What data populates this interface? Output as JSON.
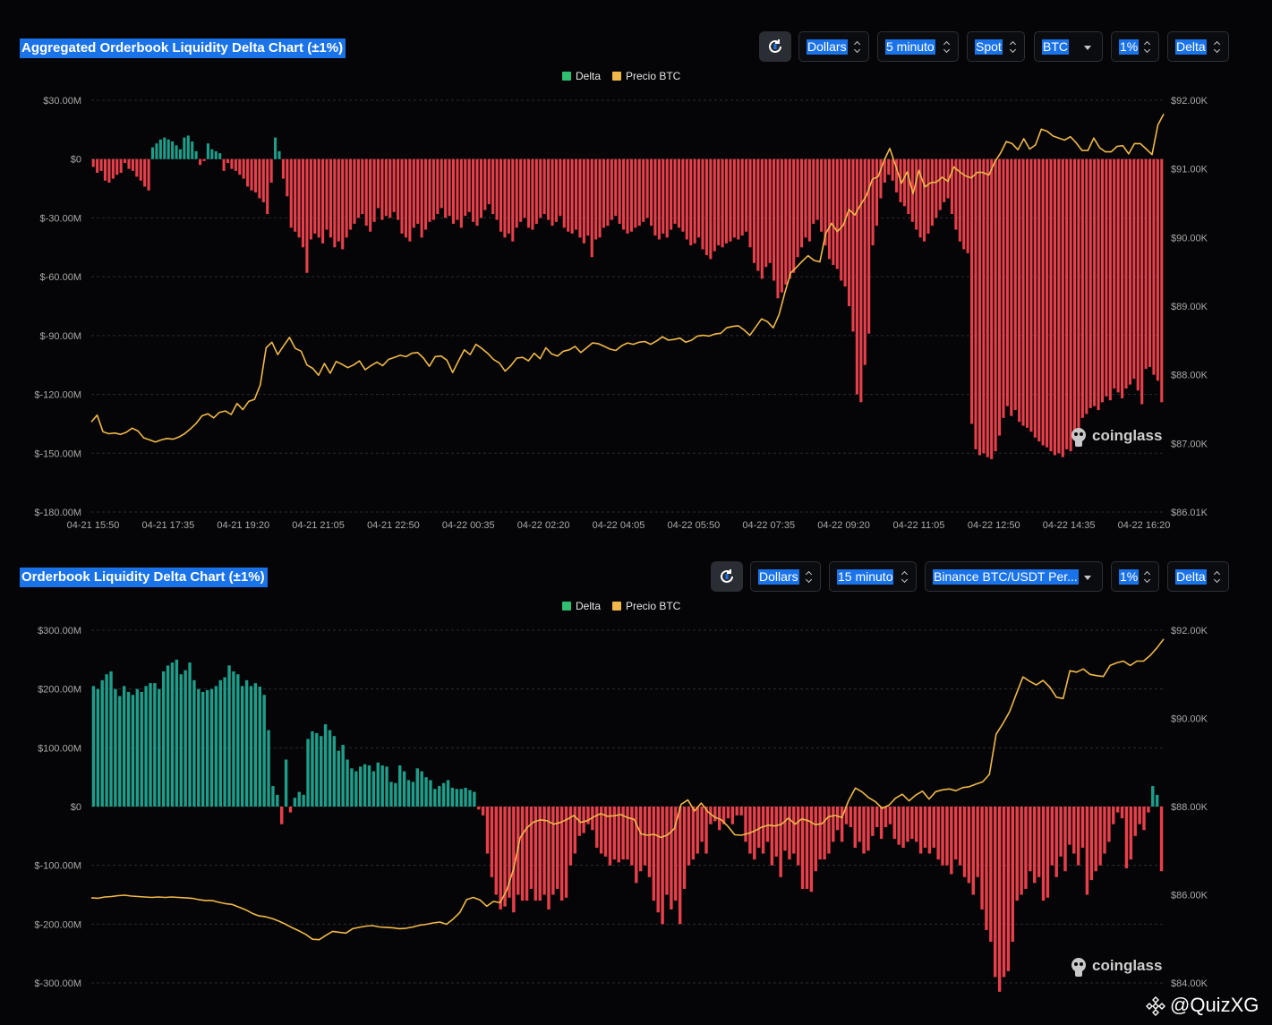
{
  "top_panel": {
    "title": "Aggregated Orderbook Liquidity Delta Chart (±1%)",
    "controls": {
      "unit": "Dollars",
      "interval": "5 minuto",
      "market": "Spot",
      "coin": "BTC",
      "range": "1%",
      "mode": "Delta"
    },
    "watermark": "coinglass"
  },
  "bottom_panel": {
    "title": "Orderbook Liquidity Delta Chart (±1%)",
    "controls": {
      "unit": "Dollars",
      "interval": "15 minuto",
      "pair": "Binance BTC/USDT Per...",
      "range": "1%",
      "mode": "Delta"
    },
    "watermark": "coinglass"
  },
  "footer": {
    "credit": "@QuizXG"
  },
  "colors": {
    "positive": "#1e9e8a",
    "negative": "#e8404a",
    "price": "#f0b84a",
    "background": "#050507"
  },
  "chart_data": [
    {
      "type": "bar",
      "title": "Aggregated Orderbook Liquidity Delta Chart (±1%)",
      "legend": [
        "Delta",
        "Precio BTC"
      ],
      "legend_position": "top-center",
      "grid": true,
      "x_ticks": [
        "04-21 15:50",
        "04-21 17:35",
        "04-21 19:20",
        "04-21 21:05",
        "04-21 22:50",
        "04-22 00:35",
        "04-22 02:20",
        "04-22 04:05",
        "04-22 05:50",
        "04-22 07:35",
        "04-22 09:20",
        "04-22 11:05",
        "04-22 12:50",
        "04-22 14:35",
        "04-22 16:20"
      ],
      "y_left": {
        "ticks": [
          "$30.00M",
          "$0",
          "$-30.00M",
          "$-60.00M",
          "$-90.00M",
          "$-120.00M",
          "$-150.00M",
          "$-180.00M"
        ],
        "range": [
          -180,
          30
        ],
        "unit": "M USD"
      },
      "y_right": {
        "ticks": [
          "$92.00K",
          "$91.00K",
          "$90.00K",
          "$89.00K",
          "$88.00K",
          "$87.00K",
          "$86.01K"
        ],
        "range": [
          86010,
          92000
        ]
      },
      "series": [
        {
          "name": "Delta",
          "kind": "bar",
          "values": [
            -4,
            -7,
            -6,
            -11,
            -12,
            -10,
            -8,
            -7,
            -2,
            -5,
            -6,
            -9,
            -11,
            -14,
            -16,
            6,
            8,
            10,
            11,
            10,
            9,
            7,
            5,
            11,
            12,
            9,
            4,
            -3,
            -1,
            8,
            5,
            4,
            3,
            -6,
            -2,
            -5,
            -6,
            -8,
            -10,
            -14,
            -16,
            -17,
            -20,
            -22,
            -28,
            -12,
            11,
            4,
            -10,
            -19,
            -35,
            -37,
            -40,
            -45,
            -58,
            -41,
            -38,
            -40,
            -43,
            -36,
            -40,
            -45,
            -42,
            -46,
            -40,
            -36,
            -33,
            -30,
            -28,
            -34,
            -37,
            -32,
            -25,
            -31,
            -29,
            -30,
            -27,
            -31,
            -38,
            -40,
            -42,
            -35,
            -33,
            -40,
            -36,
            -32,
            -31,
            -28,
            -25,
            -30,
            -29,
            -33,
            -31,
            -35,
            -29,
            -27,
            -32,
            -34,
            -30,
            -26,
            -23,
            -28,
            -31,
            -37,
            -40,
            -38,
            -42,
            -35,
            -32,
            -30,
            -35,
            -36,
            -33,
            -30,
            -28,
            -31,
            -34,
            -32,
            -29,
            -35,
            -37,
            -38,
            -36,
            -40,
            -43,
            -39,
            -50,
            -41,
            -40,
            -35,
            -34,
            -31,
            -29,
            -33,
            -36,
            -38,
            -37,
            -35,
            -34,
            -32,
            -30,
            -34,
            -39,
            -41,
            -38,
            -40,
            -36,
            -33,
            -35,
            -37,
            -41,
            -44,
            -43,
            -40,
            -46,
            -49,
            -51,
            -47,
            -44,
            -45,
            -43,
            -42,
            -40,
            -41,
            -39,
            -37,
            -45,
            -53,
            -57,
            -61,
            -55,
            -53,
            -62,
            -71,
            -68,
            -64,
            -61,
            -58,
            -50,
            -45,
            -40,
            -42,
            -33,
            -31,
            -37,
            -44,
            -51,
            -54,
            -56,
            -62,
            -65,
            -75,
            -88,
            -120,
            -124,
            -105,
            -89,
            -44,
            -34,
            -20,
            -12,
            -8,
            -11,
            -17,
            -22,
            -24,
            -28,
            -32,
            -36,
            -40,
            -42,
            -38,
            -34,
            -30,
            -26,
            -22,
            -20,
            -28,
            -36,
            -42,
            -46,
            -48,
            -135,
            -148,
            -151,
            -150,
            -152,
            -153,
            -149,
            -141,
            -132,
            -126,
            -131,
            -128,
            -134,
            -136,
            -137,
            -139,
            -142,
            -144,
            -146,
            -147,
            -149,
            -151,
            -150,
            -152,
            -148,
            -149,
            -142,
            -138,
            -132,
            -130,
            -127,
            -126,
            -128,
            -124,
            -121,
            -123,
            -117,
            -119,
            -122,
            -117,
            -115,
            -112,
            -118,
            -125,
            -107,
            -106,
            -110,
            -113,
            -124
          ],
          "color": "#1e9e8a / #e8404a"
        },
        {
          "name": "Precio BTC",
          "kind": "line",
          "values": [
            87320,
            87420,
            87180,
            87150,
            87160,
            87140,
            87170,
            87230,
            87190,
            87090,
            87060,
            87030,
            87060,
            87080,
            87070,
            87100,
            87150,
            87220,
            87300,
            87410,
            87440,
            87380,
            87460,
            87480,
            87430,
            87590,
            87500,
            87620,
            87650,
            87860,
            88400,
            88480,
            88300,
            88430,
            88550,
            88390,
            88350,
            88150,
            88100,
            88000,
            88170,
            88030,
            88200,
            88160,
            88110,
            88150,
            88210,
            88080,
            88140,
            88190,
            88140,
            88230,
            88260,
            88290,
            88270,
            88320,
            88330,
            88250,
            88130,
            88270,
            88280,
            88220,
            88040,
            88210,
            88370,
            88300,
            88450,
            88390,
            88320,
            88230,
            88180,
            88060,
            88140,
            88250,
            88260,
            88210,
            88320,
            88240,
            88400,
            88310,
            88280,
            88350,
            88370,
            88420,
            88330,
            88400,
            88470,
            88460,
            88420,
            88380,
            88360,
            88430,
            88470,
            88450,
            88480,
            88490,
            88450,
            88500,
            88560,
            88510,
            88520,
            88540,
            88480,
            88510,
            88570,
            88580,
            88570,
            88600,
            88610,
            88690,
            88710,
            88720,
            88660,
            88580,
            88700,
            88820,
            88780,
            88690,
            88880,
            89200,
            89490,
            89570,
            89660,
            89740,
            89670,
            89650,
            90060,
            90210,
            90090,
            90180,
            90410,
            90330,
            90480,
            90610,
            90850,
            90890,
            91120,
            91300,
            91050,
            90790,
            90960,
            90640,
            90980,
            90740,
            90800,
            90810,
            90880,
            90820,
            91030,
            90960,
            90900,
            90870,
            90950,
            90950,
            90910,
            91100,
            91230,
            91400,
            91370,
            91280,
            91440,
            91290,
            91350,
            91580,
            91550,
            91480,
            91450,
            91420,
            91470,
            91380,
            91270,
            91270,
            91450,
            91310,
            91250,
            91250,
            91330,
            91340,
            91220,
            91370,
            91370,
            91290,
            91210,
            91640,
            91800
          ]
        }
      ]
    },
    {
      "type": "bar",
      "title": "Orderbook Liquidity Delta Chart (±1%)",
      "legend": [
        "Delta",
        "Precio BTC"
      ],
      "legend_position": "top-center",
      "grid": true,
      "x_ticks": [],
      "y_left": {
        "ticks": [
          "$300.00M",
          "$200.00M",
          "$100.00M",
          "$0",
          "$-100.00M",
          "$-200.00M",
          "$-300.00M"
        ],
        "range": [
          -300,
          300
        ],
        "unit": "M USD"
      },
      "y_right": {
        "ticks": [
          "$92.00K",
          "$90.00K",
          "$88.00K",
          "$86.00K",
          "$84.00K"
        ],
        "range": [
          84000,
          92000
        ]
      },
      "series": [
        {
          "name": "Delta",
          "kind": "bar",
          "values": [
            205,
            200,
            215,
            225,
            230,
            200,
            188,
            205,
            195,
            190,
            200,
            195,
            205,
            210,
            210,
            200,
            230,
            240,
            245,
            250,
            225,
            232,
            245,
            215,
            200,
            195,
            198,
            200,
            205,
            215,
            220,
            240,
            230,
            225,
            205,
            215,
            205,
            210,
            204,
            190,
            130,
            35,
            20,
            -30,
            80,
            -10,
            15,
            25,
            20,
            115,
            128,
            125,
            120,
            140,
            130,
            120,
            95,
            105,
            80,
            65,
            60,
            68,
            72,
            70,
            60,
            75,
            70,
            68,
            42,
            40,
            70,
            60,
            45,
            42,
            65,
            60,
            50,
            45,
            30,
            35,
            40,
            45,
            32,
            30,
            30,
            32,
            28,
            25,
            -5,
            -15,
            -80,
            -120,
            -150,
            -175,
            -170,
            -155,
            -180,
            -150,
            -160,
            -160,
            -140,
            -160,
            -160,
            -150,
            -175,
            -150,
            -140,
            -160,
            -155,
            -100,
            -80,
            -50,
            -45,
            -30,
            -40,
            -70,
            -80,
            -85,
            -100,
            -90,
            -95,
            -90,
            -90,
            -100,
            -130,
            -110,
            -100,
            -120,
            -160,
            -180,
            -200,
            -150,
            -175,
            -160,
            -200,
            -140,
            -100,
            -90,
            -80,
            -60,
            -80,
            -30,
            -25,
            -40,
            -30,
            -20,
            -30,
            -15,
            -15,
            -60,
            -80,
            -90,
            -70,
            -80,
            -60,
            -100,
            -85,
            -120,
            -75,
            -90,
            -80,
            -100,
            -140,
            -140,
            -145,
            -110,
            -90,
            -90,
            -80,
            -60,
            -40,
            -60,
            -30,
            -35,
            -70,
            -60,
            -80,
            -75,
            -50,
            -35,
            -55,
            -35,
            -30,
            -55,
            -65,
            -70,
            -60,
            -55,
            -60,
            -80,
            -70,
            -80,
            -70,
            -90,
            -100,
            -100,
            -115,
            -90,
            -100,
            -120,
            -130,
            -150,
            -120,
            -175,
            -210,
            -230,
            -290,
            -315,
            -290,
            -280,
            -230,
            -160,
            -150,
            -140,
            -110,
            -130,
            -120,
            -160,
            -155,
            -100,
            -120,
            -85,
            -110,
            -65,
            -80,
            -100,
            -70,
            -150,
            -125,
            -110,
            -100,
            -80,
            -60,
            -30,
            -10,
            -20,
            -105,
            -90,
            -50,
            -30,
            -40,
            -10,
            35,
            20,
            -110
          ],
          "color": "#1e9e8a / #e8404a"
        },
        {
          "name": "Precio BTC",
          "kind": "line",
          "values": [
            85930,
            85920,
            85950,
            85960,
            85980,
            85990,
            85970,
            85960,
            85950,
            85940,
            85950,
            85940,
            85950,
            85940,
            85930,
            85920,
            85890,
            85870,
            85870,
            85830,
            85800,
            85780,
            85720,
            85660,
            85580,
            85520,
            85500,
            85460,
            85400,
            85330,
            85250,
            85180,
            85100,
            84990,
            84980,
            85080,
            85170,
            85150,
            85130,
            85230,
            85260,
            85290,
            85300,
            85270,
            85260,
            85250,
            85230,
            85240,
            85270,
            85310,
            85330,
            85360,
            85380,
            85330,
            85450,
            85600,
            85890,
            85940,
            85880,
            85740,
            85850,
            85820,
            86110,
            86580,
            87300,
            87520,
            87650,
            87700,
            87680,
            87600,
            87640,
            87710,
            87800,
            87640,
            87680,
            87770,
            87840,
            87780,
            87790,
            87820,
            87750,
            87710,
            87380,
            87350,
            87370,
            87300,
            87360,
            87500,
            88050,
            88150,
            87900,
            88080,
            87880,
            87760,
            87700,
            87550,
            87360,
            87350,
            87390,
            87450,
            87530,
            87580,
            87560,
            87600,
            87740,
            87600,
            87720,
            87680,
            87590,
            87610,
            87770,
            87800,
            87750,
            88140,
            88420,
            88330,
            88200,
            88110,
            87960,
            88030,
            88190,
            88280,
            88130,
            88260,
            88350,
            88170,
            88340,
            88380,
            88400,
            88360,
            88430,
            88450,
            88510,
            88560,
            88730,
            89640,
            89880,
            90150,
            90550,
            90940,
            90840,
            90760,
            90860,
            90710,
            90480,
            90450,
            91080,
            91050,
            91120,
            91000,
            90970,
            90950,
            91200,
            91260,
            91300,
            91200,
            91300,
            91300,
            91430,
            91600,
            91800
          ]
        }
      ]
    }
  ]
}
